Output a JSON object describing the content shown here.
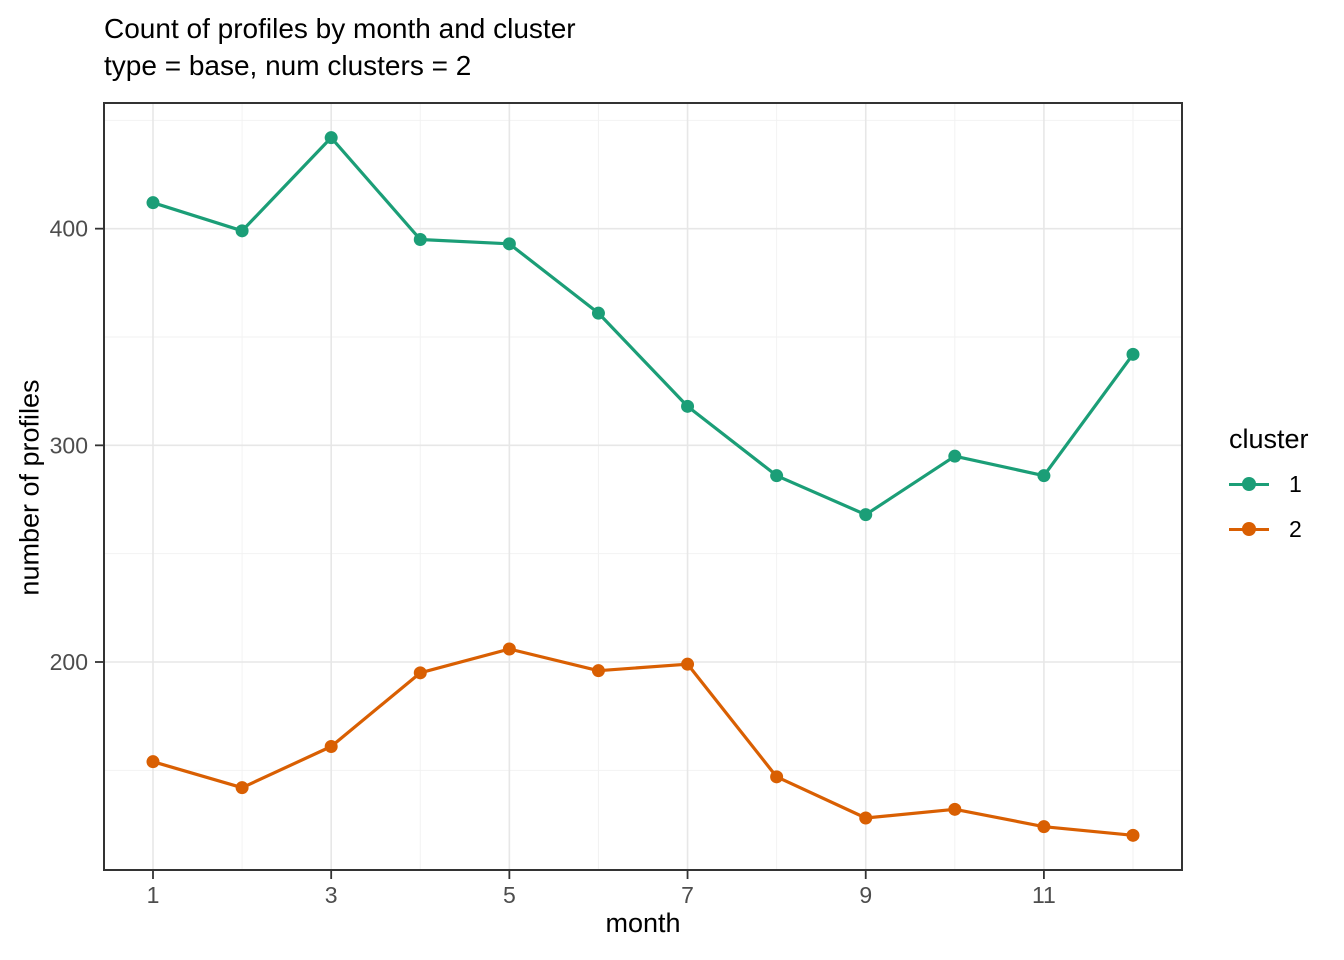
{
  "title": "Count of profiles by month and cluster",
  "subtitle": "type = base, num clusters = 2",
  "x_axis_title": "month",
  "y_axis_title": "number of profiles",
  "legend": {
    "title": "cluster",
    "items": [
      {
        "label": "1",
        "color": "#1B9E77"
      },
      {
        "label": "2",
        "color": "#D95F02"
      }
    ]
  },
  "chart_data": {
    "type": "line",
    "title": "Count of profiles by month and cluster",
    "subtitle": "type = base, num clusters = 2",
    "xlabel": "month",
    "ylabel": "number of profiles",
    "x": [
      1,
      2,
      3,
      4,
      5,
      6,
      7,
      8,
      9,
      10,
      11,
      12
    ],
    "series": [
      {
        "name": "1",
        "color": "#1B9E77",
        "values": [
          412,
          399,
          442,
          395,
          393,
          361,
          318,
          286,
          268,
          295,
          286,
          342
        ]
      },
      {
        "name": "2",
        "color": "#D95F02",
        "values": [
          154,
          142,
          161,
          195,
          206,
          196,
          199,
          147,
          128,
          132,
          124,
          120
        ]
      }
    ],
    "x_ticks": [
      1,
      3,
      5,
      7,
      9,
      11
    ],
    "y_ticks": [
      200,
      300,
      400
    ],
    "x_minor": [
      2,
      4,
      6,
      8,
      10,
      12
    ],
    "y_minor": [
      150,
      250,
      350,
      450
    ],
    "xlim": [
      0.45,
      12.55
    ],
    "ylim": [
      104,
      458
    ],
    "grid": true,
    "legend_position": "right",
    "point_radius": 6.5,
    "line_width": 3.2,
    "colors": {
      "background": "#FFFFFF",
      "panel_border": "#333333",
      "grid_major": "#E7E7E7",
      "grid_minor": "#F2F2F2",
      "tick_mark": "#333333",
      "tick_text": "#4D4D4D",
      "text": "#000000"
    }
  }
}
